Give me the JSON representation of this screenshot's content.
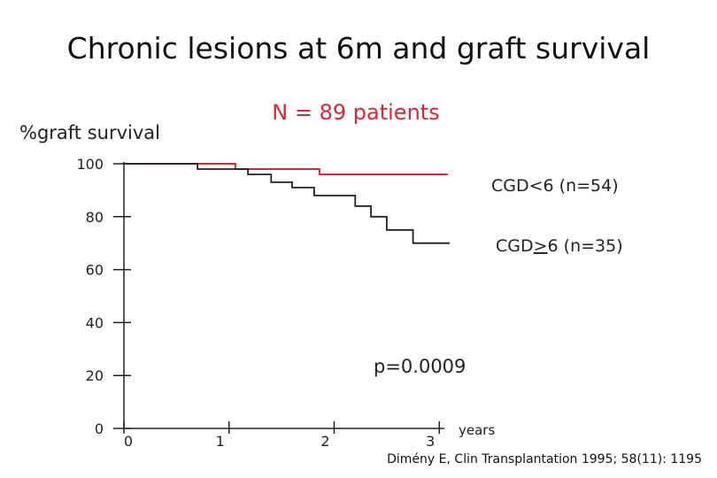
{
  "chart_data": {
    "type": "line",
    "title": "Chronic lesions at 6m and graft survival",
    "subtitle": "N = 89 patients",
    "ylabel": "%graft survival",
    "xlabel": "years",
    "xlim": [
      0,
      3.2
    ],
    "ylim": [
      0,
      100
    ],
    "x_ticks": [
      0,
      1,
      2,
      3
    ],
    "x_tick_labels": [
      "0",
      "1",
      "2",
      "3"
    ],
    "y_ticks": [
      0,
      20,
      40,
      60,
      80,
      100
    ],
    "y_tick_labels": [
      "0",
      "20",
      "40",
      "60",
      "80",
      "100"
    ],
    "grid": false,
    "series": [
      {
        "name": "CGD<6 (n=54)",
        "label": "CGD<6 (n=54)",
        "color": "#d9273a",
        "step": true,
        "x": [
          0,
          1.06,
          1.06,
          1.86,
          1.86,
          3.08
        ],
        "y": [
          100,
          100,
          98,
          98,
          96,
          96
        ]
      },
      {
        "name": "CGD>6 (n=35)",
        "label_prefix": "CGD",
        "label_symbol": ">",
        "label_suffix": "6 (n=35)",
        "color": "#222222",
        "step": true,
        "x": [
          0,
          0.7,
          0.7,
          1.18,
          1.18,
          1.4,
          1.4,
          1.6,
          1.6,
          1.81,
          1.81,
          2.2,
          2.2,
          2.35,
          2.35,
          2.5,
          2.5,
          2.75,
          2.75,
          3.1
        ],
        "y": [
          100,
          100,
          98,
          98,
          96,
          96,
          93,
          93,
          91,
          91,
          88,
          88,
          84,
          84,
          80,
          80,
          75,
          75,
          70,
          70
        ]
      }
    ],
    "annotations": [
      {
        "text": "p=0.0009"
      }
    ],
    "source": "Dimény E, Clin Transplantation 1995; 58(11): 1195"
  }
}
